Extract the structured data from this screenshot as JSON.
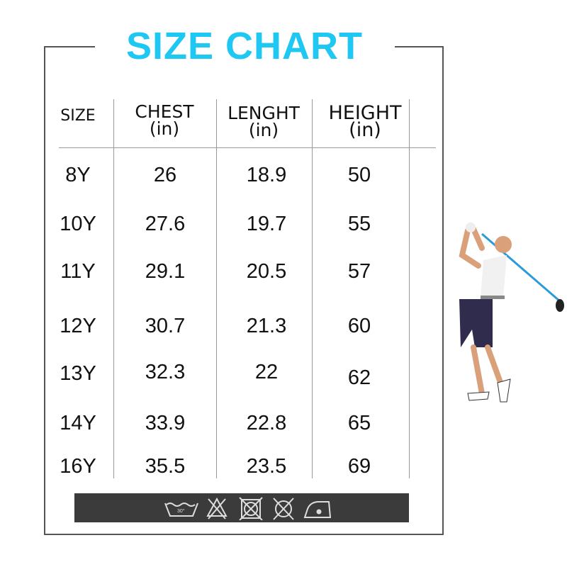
{
  "title": "SIZE CHART",
  "headers": [
    {
      "label": "SIZE",
      "unit": ""
    },
    {
      "label": "CHEST",
      "unit": "(in)"
    },
    {
      "label": "LENGHT",
      "unit": "(in)"
    },
    {
      "label": "HEIGHT",
      "unit": "(in)"
    }
  ],
  "rows": [
    [
      "8Y",
      "26",
      "18.9",
      "50"
    ],
    [
      "10Y",
      "27.6",
      "19.7",
      "55"
    ],
    [
      "11Y",
      "29.1",
      "20.5",
      "57"
    ],
    [
      "12Y",
      "30.7",
      "21.3",
      "60"
    ],
    [
      "13Y",
      "32.3",
      "22",
      "62"
    ],
    [
      "14Y",
      "33.9",
      "22.8",
      "65"
    ],
    [
      "16Y",
      "35.5",
      "23.5",
      "69"
    ]
  ],
  "care_icons": [
    "hand-wash-30-icon",
    "no-bleach-icon",
    "no-tumble-dry-icon",
    "no-dry-clean-icon",
    "iron-low-icon"
  ],
  "colors": {
    "title": "#1ec8f2",
    "care_bar": "#3b3b3b"
  }
}
